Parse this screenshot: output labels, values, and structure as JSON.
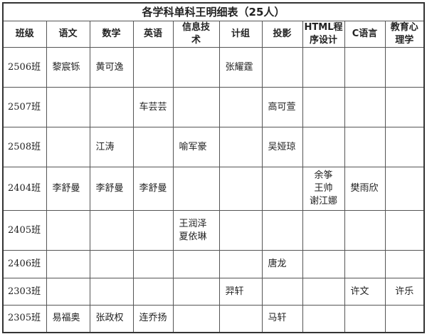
{
  "title": "各学科单科王明细表（25人）",
  "headers": [
    "班级",
    "语文",
    "数学",
    "英语",
    "信息技术",
    "计组",
    "投影",
    "HTML程序设计",
    "C语言",
    "教育心理学"
  ],
  "header_lines": [
    [
      "班级"
    ],
    [
      "语文"
    ],
    [
      "数学"
    ],
    [
      "英语"
    ],
    [
      "信息技",
      "术"
    ],
    [
      "计组"
    ],
    [
      "投影"
    ],
    [
      "HTML程",
      "序设计"
    ],
    [
      "C语言"
    ],
    [
      "教育心",
      "理学"
    ]
  ],
  "rows": [
    {
      "class": "2506班",
      "cells": [
        [
          "黎宸铄"
        ],
        [
          "黄可逸"
        ],
        [],
        [],
        [
          "张耀霆"
        ],
        [],
        [],
        [],
        []
      ]
    },
    {
      "class": "2507班",
      "cells": [
        [],
        [],
        [
          "车芸芸"
        ],
        [],
        [],
        [
          "高可萱"
        ],
        [],
        [],
        []
      ]
    },
    {
      "class": "2508班",
      "cells": [
        [],
        [
          "江涛"
        ],
        [],
        [
          "喻军豪"
        ],
        [],
        [
          "吴娅琼"
        ],
        [],
        [],
        []
      ]
    },
    {
      "class": "2404班",
      "cells": [
        [
          "李舒曼"
        ],
        [
          "李舒曼"
        ],
        [
          "李舒曼"
        ],
        [],
        [],
        [],
        [
          "余筝",
          "王帅",
          "谢江娜"
        ],
        [
          "樊雨欣"
        ],
        []
      ]
    },
    {
      "class": "2405班",
      "cells": [
        [],
        [],
        [],
        [
          "王润泽",
          "夏依琳"
        ],
        [],
        [],
        [],
        [],
        []
      ]
    },
    {
      "class": "2406班",
      "cells": [
        [],
        [],
        [],
        [],
        [],
        [
          "唐龙"
        ],
        [],
        [],
        []
      ]
    },
    {
      "class": "2303班",
      "cells": [
        [],
        [],
        [],
        [],
        [
          "羿轩"
        ],
        [],
        [],
        [
          "许文"
        ],
        [
          "许乐"
        ]
      ]
    },
    {
      "class": "2305班",
      "cells": [
        [
          "易福奥"
        ],
        [
          "张政权"
        ],
        [
          "连乔扬"
        ],
        [],
        [],
        [
          "马轩"
        ],
        [],
        [],
        []
      ]
    }
  ]
}
